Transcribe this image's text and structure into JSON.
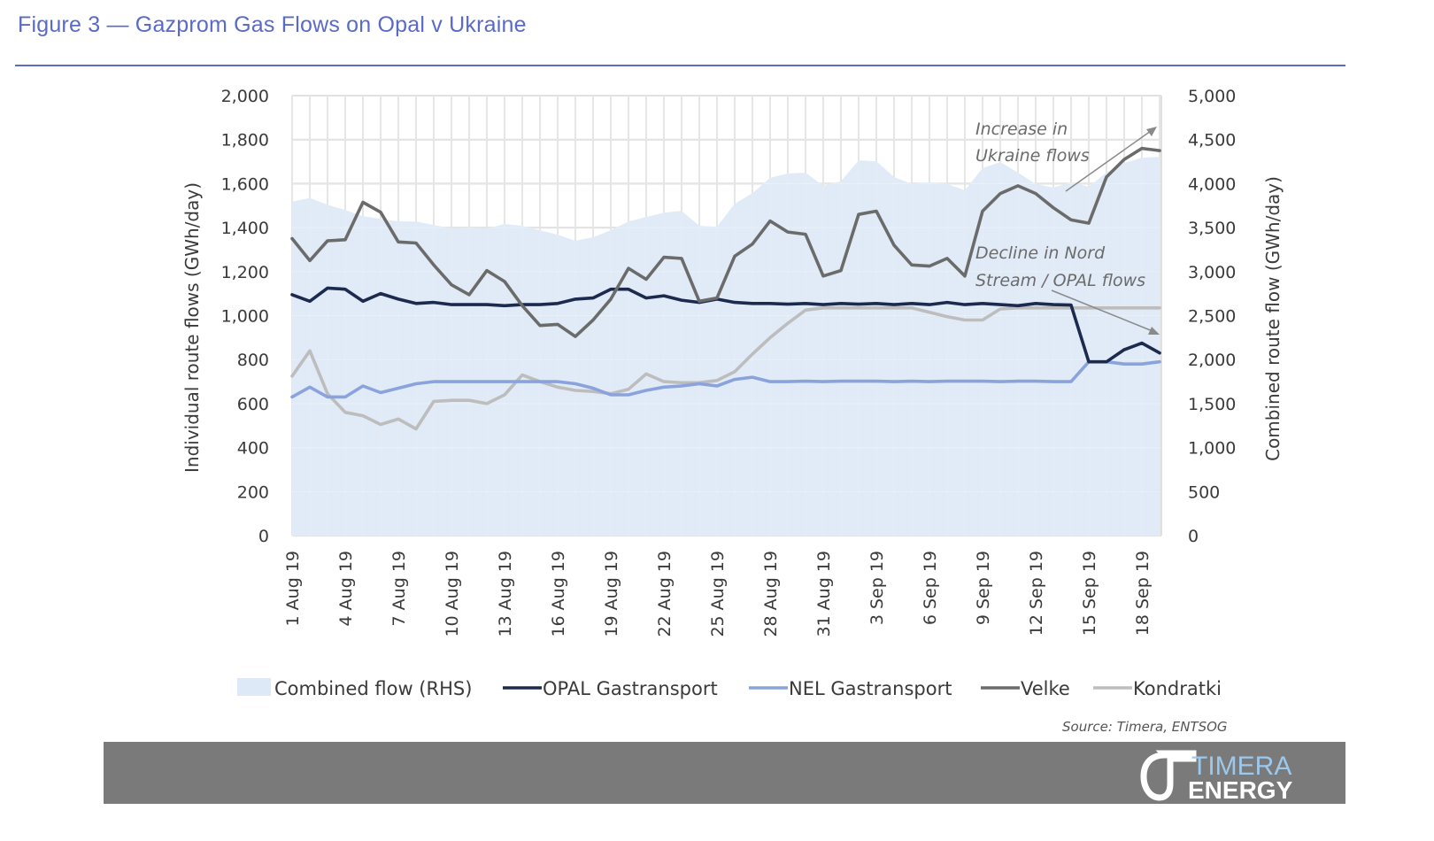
{
  "figure": {
    "title": "Figure 3 — Gazprom Gas Flows on Opal v Ukraine",
    "source": "Source: Timera, ENTSOG",
    "logo_text": [
      "TIMERA",
      "ENERGY"
    ]
  },
  "colors": {
    "title": "#5a6ac8",
    "combined": "#dde9f6",
    "opal": "#1b2a4e",
    "nel": "#8aa3dc",
    "velke": "#6b6b6b",
    "kondratki": "#bdbdbd",
    "footer": "#7a7a7a"
  },
  "chart_data": {
    "type": "line",
    "title": "Figure 3 — Gazprom Gas Flows on Opal v Ukraine",
    "ylabel": "Individual route flows (GWh/day)",
    "y2label": "Combined route flow (GWh/day)",
    "ylim": [
      0,
      2000
    ],
    "y2lim": [
      0,
      5000
    ],
    "yticks": [
      "0",
      "200",
      "400",
      "600",
      "800",
      "1,000",
      "1,200",
      "1,400",
      "1,600",
      "1,800",
      "2,000"
    ],
    "y2ticks": [
      "0",
      "500",
      "1,000",
      "1,500",
      "2,000",
      "2,500",
      "3,000",
      "3,500",
      "4,000",
      "4,500",
      "5,000"
    ],
    "grid": true,
    "x_start": "1 Aug 19",
    "x_days": 50,
    "xtick_labels": [
      "1 Aug 19",
      "4 Aug 19",
      "7 Aug 19",
      "10 Aug 19",
      "13 Aug 19",
      "16 Aug 19",
      "19 Aug 19",
      "22 Aug 19",
      "25 Aug 19",
      "28 Aug 19",
      "31 Aug 19",
      "3 Sep 19",
      "6 Sep 19",
      "9 Sep 19",
      "12 Sep 19",
      "15 Sep 19",
      "18 Sep 19"
    ],
    "xtick_every": 3,
    "legend_position": "bottom",
    "series": [
      {
        "name": "Combined flow (RHS)",
        "kind": "area",
        "axis": "right",
        "values": [
          3795,
          3835,
          3760,
          3700,
          3630,
          3600,
          3570,
          3570,
          3530,
          3490,
          3500,
          3490,
          3540,
          3520,
          3470,
          3420,
          3350,
          3390,
          3470,
          3570,
          3620,
          3670,
          3690,
          3520,
          3510,
          3770,
          3890,
          4065,
          4115,
          4125,
          3975,
          4025,
          4265,
          4255,
          4075,
          3995,
          4015,
          3995,
          3925,
          4175,
          4245,
          4125,
          3995,
          3955,
          4015,
          3965,
          4125,
          4235,
          4295,
          4305
        ]
      },
      {
        "name": "OPAL Gastransport",
        "kind": "line",
        "axis": "left",
        "values": [
          1095,
          1065,
          1125,
          1120,
          1065,
          1100,
          1075,
          1055,
          1060,
          1050,
          1050,
          1050,
          1045,
          1050,
          1050,
          1055,
          1075,
          1080,
          1120,
          1120,
          1080,
          1090,
          1070,
          1060,
          1075,
          1060,
          1055,
          1055,
          1052,
          1055,
          1050,
          1055,
          1052,
          1055,
          1050,
          1055,
          1050,
          1060,
          1050,
          1055,
          1050,
          1045,
          1055,
          1050,
          1048,
          790,
          790,
          845,
          875,
          830
        ]
      },
      {
        "name": "NEL Gastransport",
        "kind": "line",
        "axis": "left",
        "values": [
          630,
          675,
          630,
          630,
          680,
          650,
          670,
          690,
          700,
          700,
          700,
          700,
          700,
          700,
          700,
          700,
          690,
          670,
          640,
          640,
          660,
          675,
          680,
          690,
          680,
          710,
          720,
          700,
          700,
          702,
          700,
          702,
          702,
          702,
          700,
          702,
          700,
          702,
          702,
          702,
          700,
          702,
          702,
          700,
          700,
          790,
          790,
          780,
          780,
          790
        ]
      },
      {
        "name": "Velke",
        "kind": "line",
        "axis": "left",
        "values": [
          1350,
          1250,
          1340,
          1345,
          1515,
          1470,
          1335,
          1330,
          1230,
          1140,
          1095,
          1205,
          1155,
          1045,
          955,
          960,
          905,
          980,
          1075,
          1215,
          1165,
          1265,
          1260,
          1065,
          1080,
          1270,
          1325,
          1430,
          1380,
          1370,
          1180,
          1205,
          1460,
          1475,
          1320,
          1230,
          1225,
          1260,
          1180,
          1475,
          1555,
          1590,
          1555,
          1490,
          1435,
          1420,
          1630,
          1710,
          1760,
          1750
        ]
      },
      {
        "name": "Kondratki",
        "kind": "line",
        "axis": "left",
        "values": [
          725,
          840,
          645,
          560,
          545,
          505,
          530,
          485,
          610,
          615,
          615,
          600,
          640,
          730,
          700,
          675,
          660,
          655,
          645,
          665,
          735,
          700,
          695,
          695,
          705,
          745,
          825,
          900,
          965,
          1025,
          1035,
          1035,
          1035,
          1035,
          1035,
          1035,
          1015,
          995,
          980,
          980,
          1030,
          1035,
          1035,
          1035,
          1035,
          1035,
          1035,
          1035,
          1035,
          1035
        ]
      }
    ],
    "annotations": [
      {
        "text": [
          "Increase in",
          "Ukraine flows"
        ],
        "arrow": "up-right"
      },
      {
        "text": [
          "Decline in Nord",
          "Stream / OPAL flows"
        ],
        "arrow": "down-right"
      }
    ]
  }
}
